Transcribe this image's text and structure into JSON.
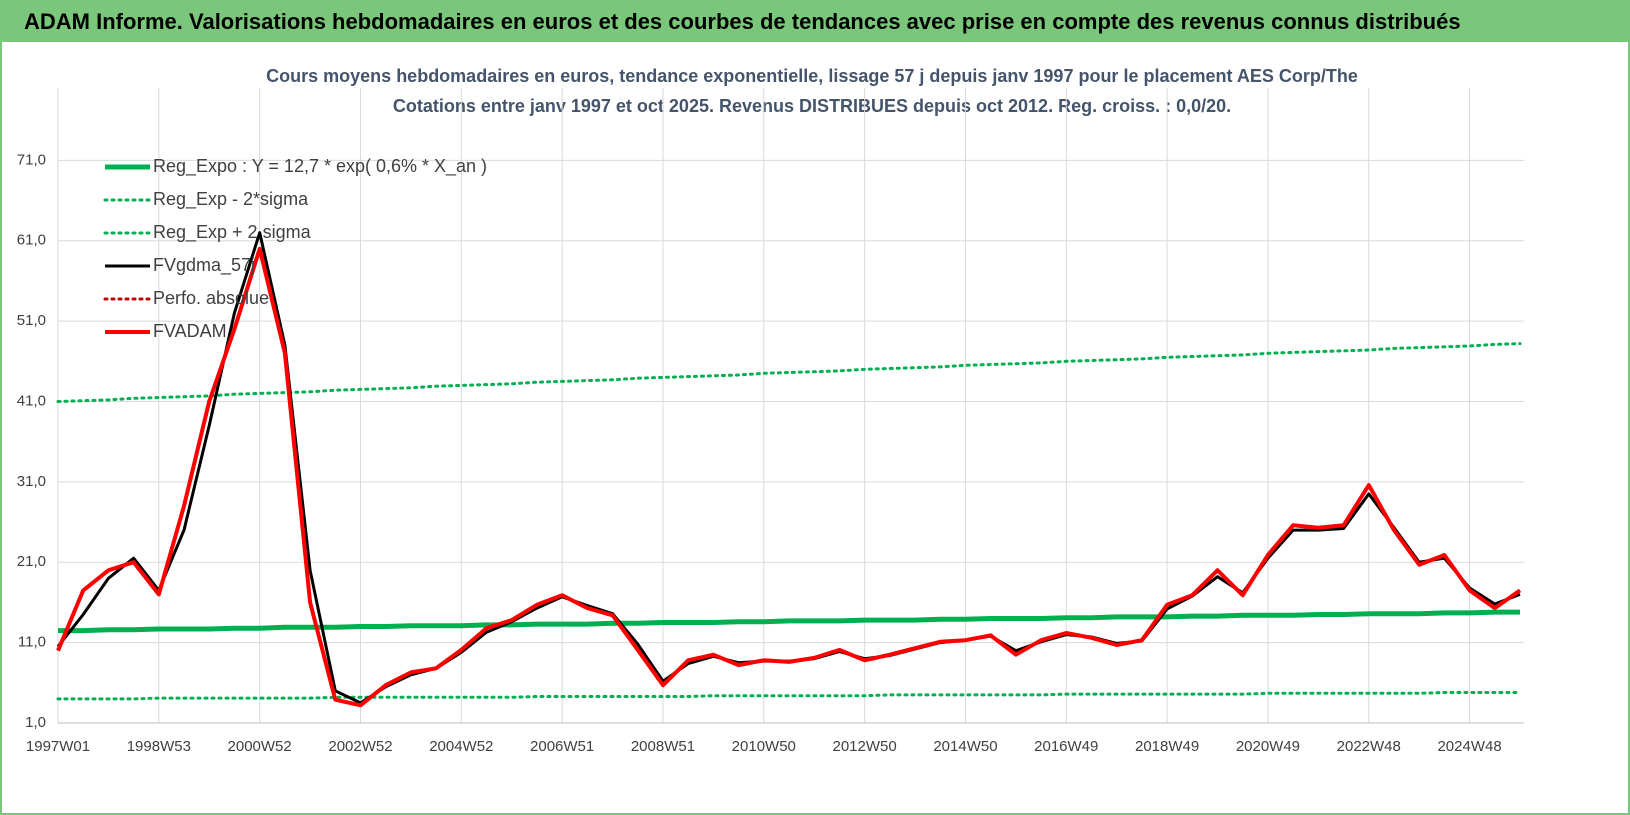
{
  "header": {
    "title": "ADAM Informe. Valorisations hebdomadaires en euros et des courbes de tendances avec prise en compte des revenus connus distribués"
  },
  "chart_data": {
    "type": "line",
    "title": "Cours moyens hebdomadaires en euros, tendance exponentielle, lissage 57 j depuis janv 1997 pour le placement AES Corp/The",
    "subtitle": "Cotations entre janv 1997 et oct 2025. Revenus DISTRIBUES depuis oct 2012.  Reg. croiss. : 0,0/20.",
    "categories": [
      "1997W01",
      null,
      null,
      null,
      "1998W53",
      null,
      null,
      null,
      "2000W52",
      null,
      null,
      null,
      "2002W52",
      null,
      null,
      null,
      "2004W52",
      null,
      null,
      null,
      "2006W51",
      null,
      null,
      null,
      "2008W51",
      null,
      null,
      null,
      "2010W50",
      null,
      null,
      null,
      "2012W50",
      null,
      null,
      null,
      "2014W50",
      null,
      null,
      null,
      "2016W49",
      null,
      null,
      null,
      "2018W49",
      null,
      null,
      null,
      "2020W49",
      null,
      null,
      null,
      "2022W48",
      null,
      null,
      null,
      "2024W48",
      null,
      null
    ],
    "ylim": [
      1,
      80
    ],
    "yticks": [
      {
        "value": 1,
        "label": "1,0"
      },
      {
        "value": 11,
        "label": "11,0"
      },
      {
        "value": 21,
        "label": "21,0"
      },
      {
        "value": 31,
        "label": "31,0"
      },
      {
        "value": 41,
        "label": "41,0"
      },
      {
        "value": 51,
        "label": "51,0"
      },
      {
        "value": 61,
        "label": "61,0"
      },
      {
        "value": 71,
        "label": "71,0"
      }
    ],
    "grid": true,
    "legend": "upper-left",
    "series": [
      {
        "name": "Reg_Expo : Y = 12,7 * exp( 0,6% *  X_an )",
        "color": "#00b050",
        "style": "solid",
        "width": 5,
        "values": [
          12.5,
          12.5,
          12.6,
          12.6,
          12.7,
          12.7,
          12.7,
          12.8,
          12.8,
          12.9,
          12.9,
          12.9,
          13.0,
          13.0,
          13.1,
          13.1,
          13.1,
          13.2,
          13.2,
          13.3,
          13.3,
          13.3,
          13.4,
          13.4,
          13.5,
          13.5,
          13.5,
          13.6,
          13.6,
          13.7,
          13.7,
          13.7,
          13.8,
          13.8,
          13.8,
          13.9,
          13.9,
          14.0,
          14.0,
          14.0,
          14.1,
          14.1,
          14.2,
          14.2,
          14.2,
          14.3,
          14.3,
          14.4,
          14.4,
          14.4,
          14.5,
          14.5,
          14.6,
          14.6,
          14.6,
          14.7,
          14.7,
          14.8,
          14.8
        ]
      },
      {
        "name": "Reg_Exp - 2*sigma",
        "color": "#00b050",
        "style": "dotted",
        "width": 3,
        "values": [
          4.0,
          4.0,
          4.0,
          4.0,
          4.1,
          4.1,
          4.1,
          4.1,
          4.1,
          4.1,
          4.1,
          4.2,
          4.2,
          4.2,
          4.2,
          4.2,
          4.2,
          4.2,
          4.2,
          4.3,
          4.3,
          4.3,
          4.3,
          4.3,
          4.3,
          4.3,
          4.4,
          4.4,
          4.4,
          4.4,
          4.4,
          4.4,
          4.4,
          4.5,
          4.5,
          4.5,
          4.5,
          4.5,
          4.5,
          4.5,
          4.6,
          4.6,
          4.6,
          4.6,
          4.6,
          4.6,
          4.6,
          4.6,
          4.7,
          4.7,
          4.7,
          4.7,
          4.7,
          4.7,
          4.7,
          4.8,
          4.8,
          4.8,
          4.8
        ]
      },
      {
        "name": "Reg_Exp + 2 sigma",
        "color": "#00b050",
        "style": "dotted",
        "width": 3,
        "values": [
          41.0,
          41.1,
          41.2,
          41.4,
          41.5,
          41.6,
          41.7,
          41.9,
          42.0,
          42.1,
          42.2,
          42.4,
          42.5,
          42.6,
          42.7,
          42.9,
          43.0,
          43.1,
          43.2,
          43.4,
          43.5,
          43.6,
          43.7,
          43.9,
          44.0,
          44.1,
          44.2,
          44.3,
          44.5,
          44.6,
          44.7,
          44.8,
          45.0,
          45.1,
          45.2,
          45.3,
          45.5,
          45.6,
          45.7,
          45.8,
          46.0,
          46.1,
          46.2,
          46.3,
          46.5,
          46.6,
          46.7,
          46.8,
          47.0,
          47.1,
          47.2,
          47.3,
          47.4,
          47.6,
          47.7,
          47.8,
          47.9,
          48.1,
          48.2
        ]
      },
      {
        "name": "FVgdma_57j",
        "color": "#000000",
        "style": "solid",
        "width": 3,
        "values": [
          10.5,
          14.5,
          19,
          21.5,
          17.5,
          25,
          38,
          52,
          62,
          48,
          20,
          5,
          3.5,
          5.5,
          7,
          7.8,
          9.8,
          12.3,
          13.6,
          15.3,
          16.7,
          15.6,
          14.6,
          10.8,
          6.2,
          8.4,
          9.3,
          8.5,
          8.7,
          8.7,
          9,
          9.9,
          9,
          9.4,
          10.2,
          11,
          11.3,
          11.8,
          10,
          11.1,
          12,
          11.7,
          10.9,
          11.2,
          15.2,
          16.8,
          19.2,
          17.2,
          21.5,
          25,
          25,
          25.2,
          29.5,
          25.3,
          21,
          21.5,
          17.8,
          15.8,
          17
        ]
      },
      {
        "name": "Perfo. absolue",
        "color": "#c00000",
        "style": "dotted",
        "width": 3,
        "values": [
          null,
          null,
          null,
          null,
          null,
          null,
          null,
          null,
          null,
          null,
          null,
          null,
          null,
          null,
          null,
          null,
          null,
          null,
          null,
          null,
          null,
          null,
          null,
          null,
          null,
          null,
          null,
          null,
          null,
          null,
          null,
          null,
          null,
          null,
          null,
          null,
          null,
          null,
          null,
          null,
          null,
          null,
          null,
          null,
          null,
          null,
          null,
          null,
          null,
          null,
          null,
          null,
          null,
          null,
          null,
          null,
          null,
          null,
          null
        ]
      },
      {
        "name": "FVADAM",
        "color": "#ff0000",
        "style": "solid",
        "width": 4,
        "values": [
          10,
          17.5,
          20,
          21,
          17,
          28,
          41,
          50,
          60,
          47,
          16,
          3.9,
          3.2,
          5.7,
          7.3,
          7.8,
          10.1,
          12.8,
          13.8,
          15.7,
          16.9,
          15.3,
          14.4,
          10.1,
          5.7,
          8.8,
          9.5,
          8.2,
          8.8,
          8.6,
          9.1,
          10.1,
          8.8,
          9.5,
          10.3,
          11.1,
          11.3,
          11.9,
          9.5,
          11.3,
          12.2,
          11.6,
          10.7,
          11.3,
          15.7,
          16.9,
          20,
          16.9,
          21.9,
          25.6,
          25.3,
          25.6,
          30.6,
          25,
          20.7,
          21.9,
          17.5,
          15.3,
          17.5
        ]
      }
    ]
  }
}
